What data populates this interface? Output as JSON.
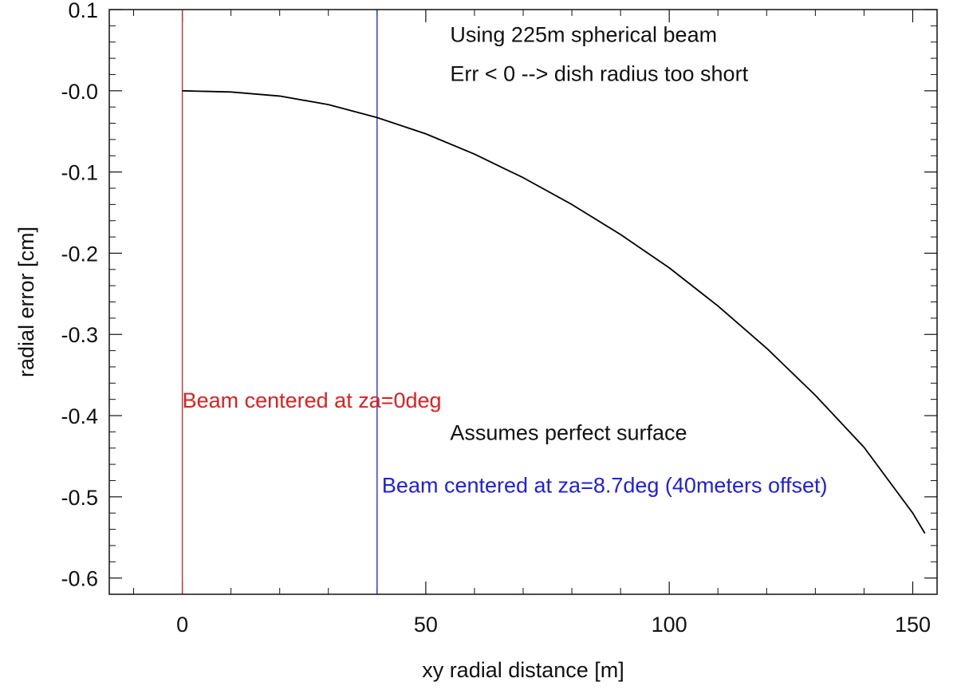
{
  "chart_data": {
    "type": "line",
    "title": "",
    "xlabel": "xy radial distance [m]",
    "ylabel": "radial error [cm]",
    "xlim": [
      -15,
      155
    ],
    "ylim": [
      -0.62,
      0.1
    ],
    "x_ticks": [
      0,
      50,
      100,
      150
    ],
    "x_tick_labels": [
      "0",
      "50",
      "100",
      "150"
    ],
    "y_ticks": [
      0.1,
      0.0,
      -0.1,
      -0.2,
      -0.3,
      -0.4,
      -0.5,
      -0.6
    ],
    "y_tick_labels": [
      "0.1",
      "-0.0",
      "-0.1",
      "-0.2",
      "-0.3",
      "-0.4",
      "-0.5",
      "-0.6"
    ],
    "x_minor_step": 10,
    "y_minor_step": 0.02,
    "grid": false,
    "series": [
      {
        "color": "#000000",
        "x": [
          0,
          10,
          20,
          30,
          40,
          50,
          60,
          70,
          80,
          90,
          100,
          110,
          120,
          130,
          140,
          150,
          152.5
        ],
        "values": [
          0.0,
          -0.0015,
          -0.0065,
          -0.017,
          -0.033,
          -0.053,
          -0.078,
          -0.107,
          -0.14,
          -0.177,
          -0.218,
          -0.265,
          -0.317,
          -0.375,
          -0.439,
          -0.52,
          -0.545
        ]
      }
    ],
    "vlines": [
      {
        "x": 0,
        "color": "#e02020"
      },
      {
        "x": 40,
        "color": "#2020e0"
      }
    ],
    "annotations": [
      {
        "text": "Using 225m spherical beam",
        "x": 55,
        "y": 0.06,
        "color": "#111111"
      },
      {
        "text": "Err < 0 --> dish radius too short",
        "x": 55,
        "y": 0.012,
        "color": "#111111"
      },
      {
        "text": "Beam centered at za=0deg",
        "x": 0,
        "y": -0.39,
        "color": "#e02020"
      },
      {
        "text": "Assumes perfect surface",
        "x": 55,
        "y": -0.43,
        "color": "#111111"
      },
      {
        "text": "Beam centered at za=8.7deg (40meters offset)",
        "x": 41,
        "y": -0.495,
        "color": "#2020e0"
      }
    ]
  }
}
